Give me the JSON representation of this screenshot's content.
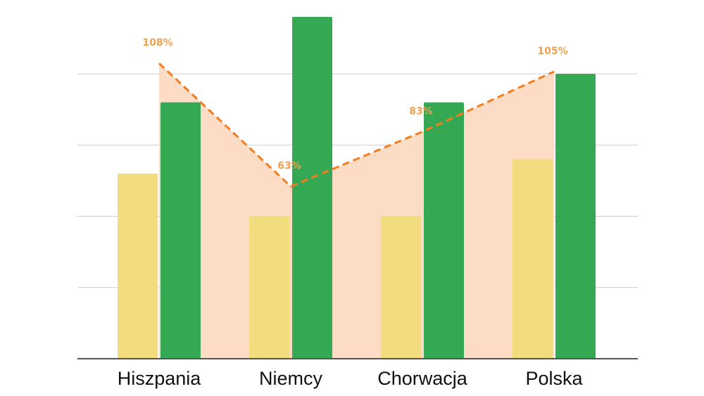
{
  "chart_data": {
    "type": "bar",
    "categories": [
      "Hiszpania",
      "Niemcy",
      "Chorwacja",
      "Polska"
    ],
    "series": [
      {
        "values": [
          2.6,
          2.0,
          2.0,
          2.8
        ],
        "color": "#f3dc7d"
      },
      {
        "values": [
          3.6,
          4.8,
          3.6,
          4.0
        ],
        "color": "#34a853"
      }
    ],
    "line": {
      "type": "area",
      "values": [
        108,
        63,
        83,
        105
      ],
      "labels": [
        "108%",
        "63%",
        "83%",
        "105%"
      ],
      "color": "#f57c1f",
      "fill_color": "#fcdcc4",
      "style": "dashed"
    },
    "ylim": [
      0,
      4.8
    ],
    "gridlines": [
      1,
      2,
      3,
      4
    ],
    "line_ylim": [
      0,
      125
    ],
    "grid": true,
    "legend": "none"
  }
}
